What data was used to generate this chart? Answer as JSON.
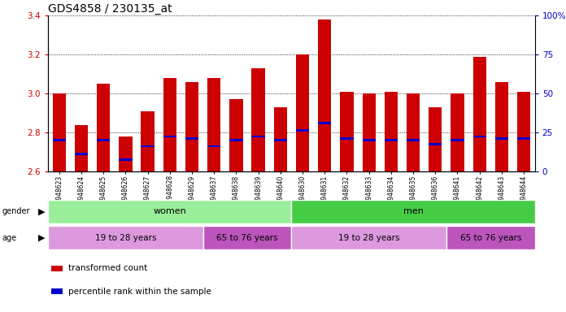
{
  "title": "GDS4858 / 230135_at",
  "samples": [
    "GSM948623",
    "GSM948624",
    "GSM948625",
    "GSM948626",
    "GSM948627",
    "GSM948628",
    "GSM948629",
    "GSM948637",
    "GSM948638",
    "GSM948639",
    "GSM948640",
    "GSM948630",
    "GSM948631",
    "GSM948632",
    "GSM948633",
    "GSM948634",
    "GSM948635",
    "GSM948636",
    "GSM948641",
    "GSM948642",
    "GSM948643",
    "GSM948644"
  ],
  "bar_values": [
    3.0,
    2.84,
    3.05,
    2.78,
    2.91,
    3.08,
    3.06,
    3.08,
    2.97,
    3.13,
    2.93,
    3.2,
    3.38,
    3.01,
    3.0,
    3.01,
    3.0,
    2.93,
    3.0,
    3.19,
    3.06,
    3.01
  ],
  "percentile_values": [
    2.76,
    2.69,
    2.76,
    2.66,
    2.73,
    2.78,
    2.77,
    2.73,
    2.76,
    2.78,
    2.76,
    2.81,
    2.85,
    2.77,
    2.76,
    2.76,
    2.76,
    2.74,
    2.76,
    2.78,
    2.77,
    2.77
  ],
  "ylim": [
    2.6,
    3.4
  ],
  "yticks": [
    2.6,
    2.8,
    3.0,
    3.2,
    3.4
  ],
  "right_yticks": [
    0,
    25,
    50,
    75,
    100
  ],
  "bar_color": "#cc0000",
  "blue_color": "#0000cc",
  "bar_width": 0.6,
  "background_plot": "#ffffff",
  "background_figure": "#ffffff",
  "grid_color": "#000000",
  "gender_groups": [
    {
      "label": "women",
      "start": 0,
      "end": 11,
      "color": "#99ee99"
    },
    {
      "label": "men",
      "start": 11,
      "end": 22,
      "color": "#44cc44"
    }
  ],
  "age_groups": [
    {
      "label": "19 to 28 years",
      "start": 0,
      "end": 7,
      "color": "#dd99dd"
    },
    {
      "label": "65 to 76 years",
      "start": 7,
      "end": 11,
      "color": "#bb55bb"
    },
    {
      "label": "19 to 28 years",
      "start": 11,
      "end": 18,
      "color": "#dd99dd"
    },
    {
      "label": "65 to 76 years",
      "start": 18,
      "end": 22,
      "color": "#bb55bb"
    }
  ],
  "legend_items": [
    {
      "label": "transformed count",
      "color": "#cc0000"
    },
    {
      "label": "percentile rank within the sample",
      "color": "#0000cc"
    }
  ],
  "tick_label_color": "#cc0000",
  "right_tick_color": "#0000cc",
  "title_fontsize": 10,
  "axis_fontsize": 7.5,
  "label_fontsize": 8
}
